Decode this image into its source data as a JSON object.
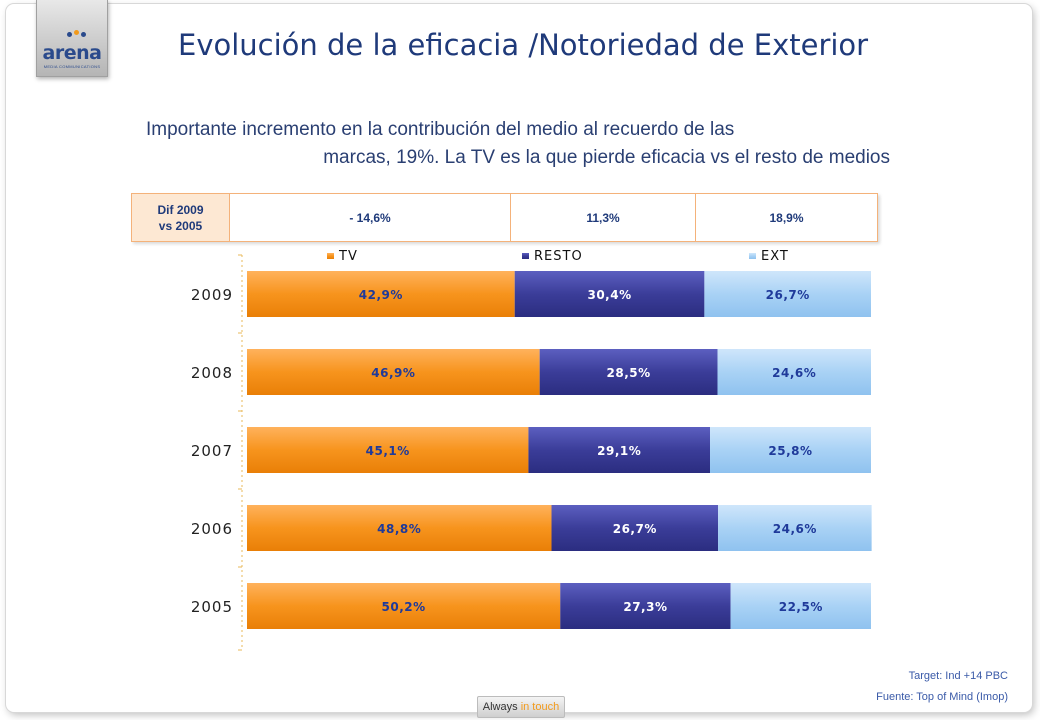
{
  "logo": {
    "word": "arena",
    "tagline": "MEDIA COMMUNICATIONS"
  },
  "title": "Evolución de la eficacia /Notoriedad de Exterior",
  "subtitle": {
    "line1": "Importante incremento en la contribución del medio al recuerdo de las",
    "line2": "marcas, 19%. La TV es la que pierde eficacia vs el resto de medios"
  },
  "dif_table": {
    "header": [
      "Dif 2009",
      "vs 2005"
    ],
    "values": [
      "- 14,6%",
      "11,3%",
      "18,9%"
    ]
  },
  "chart_data": {
    "type": "bar",
    "orientation": "horizontal",
    "stacked": true,
    "percent_stacked": true,
    "categories": [
      "2009",
      "2008",
      "2007",
      "2006",
      "2005"
    ],
    "series": [
      {
        "name": "TV",
        "color": "#f7941d",
        "values": [
          42.9,
          46.9,
          45.1,
          48.8,
          50.2
        ],
        "labels": [
          "42,9%",
          "46,9%",
          "45,1%",
          "48,8%",
          "50,2%"
        ]
      },
      {
        "name": "RESTO",
        "color": "#3b3d99",
        "values": [
          30.4,
          28.5,
          29.1,
          26.7,
          27.3
        ],
        "labels": [
          "30,4%",
          "28,5%",
          "29,1%",
          "26,7%",
          "27,3%"
        ]
      },
      {
        "name": "EXT",
        "color": "#a9d2f5",
        "values": [
          26.7,
          24.6,
          25.8,
          24.6,
          22.5
        ],
        "labels": [
          "26,7%",
          "24,6%",
          "25,8%",
          "24,6%",
          "22,5%"
        ]
      }
    ],
    "xlim": [
      0,
      100
    ],
    "legend_position": "top",
    "grid": false
  },
  "footer": {
    "target": "Target: Ind +14 PBC",
    "source": "Fuente: Top of Mind (Imop)",
    "badge_prefix": "Always ",
    "badge_accent": "in touch"
  }
}
